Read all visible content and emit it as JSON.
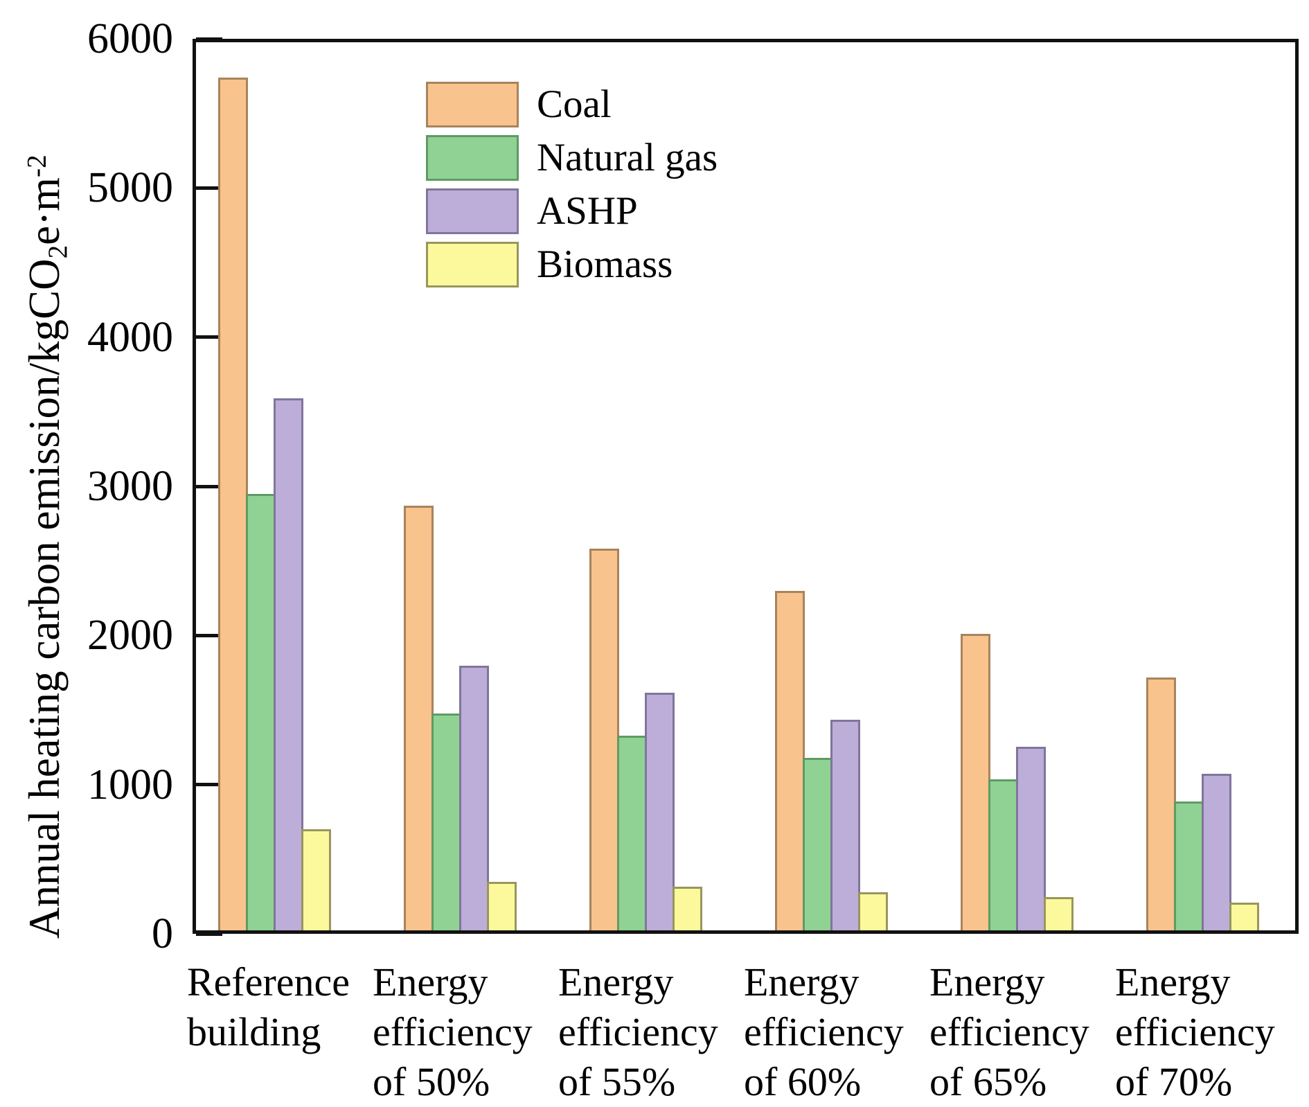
{
  "figure": {
    "background_color": "#ffffff",
    "axis_color": "#111111",
    "text_color": "#000000"
  },
  "y_axis": {
    "title_parts": [
      {
        "text": "Annual heating carbon emission/kgCO"
      },
      {
        "text": "2",
        "script": "sub"
      },
      {
        "text": "e·m",
        "script": "normal"
      },
      {
        "text": "-2",
        "script": "sup"
      }
    ],
    "title_plain": "Annual heating carbon emission/kgCO2e·m-2",
    "tick_labels": [
      "0",
      "1000",
      "2000",
      "3000",
      "4000",
      "5000",
      "6000"
    ],
    "tick_values": [
      0,
      1000,
      2000,
      3000,
      4000,
      5000,
      6000
    ]
  },
  "chart_data": {
    "type": "bar",
    "title": "",
    "xlabel": "",
    "ylabel": "Annual heating carbon emission/kgCO2e·m-2",
    "ylim": [
      0,
      6000
    ],
    "grid": false,
    "legend_position": "upper-left-inside",
    "categories": [
      "Reference building",
      "Energy efficiency of 50%",
      "Energy efficiency of 55%",
      "Energy efficiency of 60%",
      "Energy efficiency of 65%",
      "Energy efficiency of 70%"
    ],
    "category_lines": [
      [
        "Reference",
        "building"
      ],
      [
        "Energy",
        "efficiency",
        "of 50%"
      ],
      [
        "Energy",
        "efficiency",
        "of 55%"
      ],
      [
        "Energy",
        "efficiency",
        "of 60%"
      ],
      [
        "Energy",
        "efficiency",
        "of 65%"
      ],
      [
        "Energy",
        "efficiency",
        "of 70%"
      ]
    ],
    "series": [
      {
        "name": "Coal",
        "fill": "#F9C38E",
        "border": "#A8835C",
        "values": [
          5740,
          2870,
          2580,
          2300,
          2010,
          1720
        ]
      },
      {
        "name": "Natural gas",
        "fill": "#90D293",
        "border": "#5F9A64",
        "values": [
          2950,
          1475,
          1330,
          1180,
          1035,
          885
        ]
      },
      {
        "name": "ASHP",
        "fill": "#BCAED8",
        "border": "#80759B",
        "values": [
          3590,
          1795,
          1615,
          1435,
          1255,
          1075
        ]
      },
      {
        "name": "Biomass",
        "fill": "#FBF99C",
        "border": "#98965C",
        "values": [
          700,
          350,
          315,
          280,
          245,
          210
        ]
      }
    ]
  }
}
